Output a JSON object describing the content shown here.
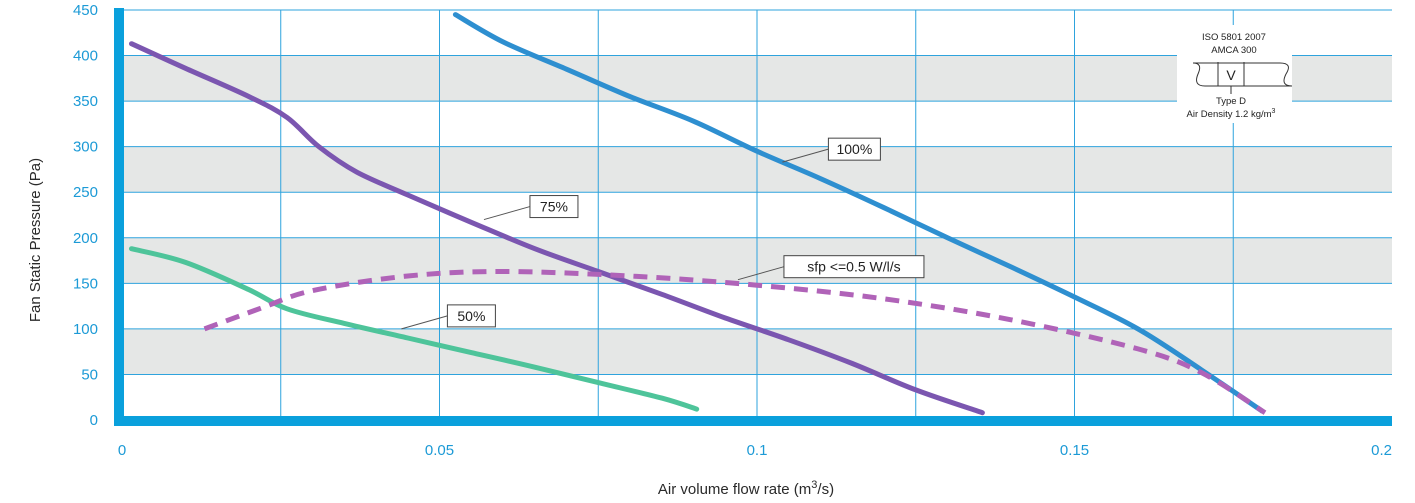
{
  "chart_data": {
    "type": "line",
    "title": "",
    "xlabel": "Air volume flow rate (m",
    "xlabel_sup": "3",
    "xlabel_end": "/s)",
    "ylabel": "Fan Static Pressure (Pa)",
    "xlim": [
      0,
      0.2
    ],
    "ylim": [
      0,
      450
    ],
    "x_ticks": [
      0,
      0.05,
      0.1,
      0.15,
      0.2
    ],
    "x_tick_labels": [
      "0",
      "0.05",
      "0.1",
      "0.15",
      "0.2"
    ],
    "y_ticks": [
      0,
      50,
      100,
      150,
      200,
      250,
      300,
      350,
      400,
      450
    ],
    "y_tick_labels": [
      "0",
      "50",
      "100",
      "150",
      "200",
      "250",
      "300",
      "350",
      "400",
      "450"
    ],
    "x_grid_step": 0.025,
    "banded_background": true,
    "colors": {
      "axis": "#0aa0dc",
      "grid": "#2ea3dd",
      "band": "#e5e7e6",
      "series_100": "#2e8fd0",
      "series_75": "#7b56b0",
      "series_50": "#4ec49a",
      "series_sfp": "#b063b8"
    },
    "series": [
      {
        "name": "100%",
        "color": "#2e8fd0",
        "dashed": false,
        "points": [
          [
            0.0525,
            445
          ],
          [
            0.06,
            415
          ],
          [
            0.07,
            385
          ],
          [
            0.08,
            355
          ],
          [
            0.09,
            328
          ],
          [
            0.1,
            295
          ],
          [
            0.11,
            265
          ],
          [
            0.12,
            233
          ],
          [
            0.13,
            200
          ],
          [
            0.14,
            168
          ],
          [
            0.15,
            135
          ],
          [
            0.16,
            100
          ],
          [
            0.17,
            55
          ],
          [
            0.1795,
            10
          ]
        ]
      },
      {
        "name": "75%",
        "color": "#7b56b0",
        "dashed": false,
        "points": [
          [
            0.0015,
            413
          ],
          [
            0.01,
            386
          ],
          [
            0.02,
            355
          ],
          [
            0.026,
            332
          ],
          [
            0.031,
            300
          ],
          [
            0.037,
            272
          ],
          [
            0.045,
            247
          ],
          [
            0.055,
            217
          ],
          [
            0.065,
            188
          ],
          [
            0.075,
            163
          ],
          [
            0.085,
            138
          ],
          [
            0.095,
            112
          ],
          [
            0.105,
            88
          ],
          [
            0.115,
            62
          ],
          [
            0.125,
            33
          ],
          [
            0.1355,
            8
          ]
        ]
      },
      {
        "name": "50%",
        "color": "#4ec49a",
        "dashed": false,
        "points": [
          [
            0.0015,
            188
          ],
          [
            0.01,
            173
          ],
          [
            0.02,
            143
          ],
          [
            0.026,
            122
          ],
          [
            0.035,
            106
          ],
          [
            0.045,
            90
          ],
          [
            0.055,
            74
          ],
          [
            0.065,
            58
          ],
          [
            0.075,
            41
          ],
          [
            0.085,
            24
          ],
          [
            0.0905,
            12
          ]
        ]
      },
      {
        "name": "sfp <=0.5 W/l/s",
        "color": "#b063b8",
        "dashed": true,
        "points": [
          [
            0.013,
            100
          ],
          [
            0.022,
            123
          ],
          [
            0.03,
            142
          ],
          [
            0.045,
            158
          ],
          [
            0.06,
            163
          ],
          [
            0.08,
            158
          ],
          [
            0.1,
            148
          ],
          [
            0.12,
            133
          ],
          [
            0.14,
            110
          ],
          [
            0.16,
            78
          ],
          [
            0.17,
            52
          ],
          [
            0.18,
            8
          ]
        ]
      }
    ],
    "callouts": [
      {
        "label": "100%",
        "anchor": [
          0.104,
          283
        ]
      },
      {
        "label": "75%",
        "anchor": [
          0.057,
          220
        ]
      },
      {
        "label": "50%",
        "anchor": [
          0.044,
          100
        ]
      },
      {
        "label": "sfp <=0.5 W/l/s",
        "anchor": [
          0.097,
          154
        ]
      }
    ],
    "standard_box": {
      "line1": "ISO 5801 2007",
      "line2": "AMCA 300",
      "symbol": "V",
      "line3": "Type D",
      "line4": "Air Density 1.2 kg/m",
      "line4_sup": "3"
    }
  }
}
